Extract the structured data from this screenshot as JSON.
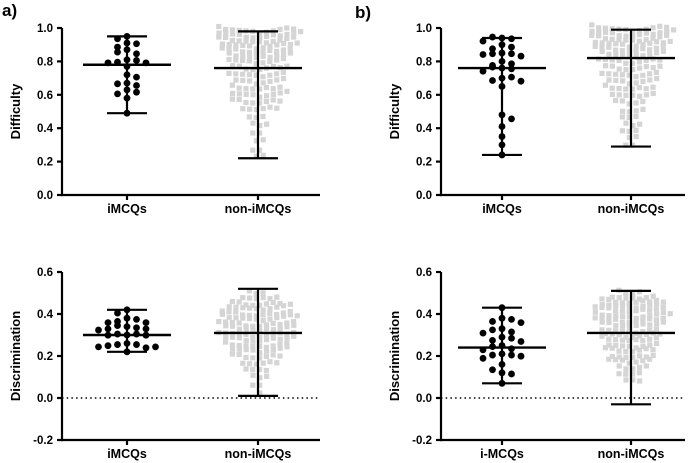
{
  "figure": {
    "panels": [
      {
        "label": "a)"
      },
      {
        "label": "b)"
      }
    ],
    "colors": {
      "black_points": "#000000",
      "gray_points": "#d5d5d5",
      "axis": "#000000",
      "background": "#ffffff"
    }
  },
  "chart_data": [
    {
      "id": "panel-a-difficulty",
      "type": "scatter",
      "panel": "a)",
      "ylabel": "Difficulty",
      "ylim": [
        0.0,
        1.0
      ],
      "yticks": [
        1.0,
        0.8,
        0.6,
        0.4,
        0.2,
        0.0
      ],
      "ytick_labels": [
        "1.0",
        "0.8",
        "0.6",
        "0.4",
        "0.2",
        "0.0"
      ],
      "zero_dotted_line": false,
      "categories": [
        "iMCQs",
        "non-iMCQs"
      ],
      "groups": [
        {
          "category": "iMCQs",
          "marker": "circle",
          "color": "#000000",
          "mean": 0.78,
          "whisker_low": 0.49,
          "whisker_high": 0.95,
          "points": [
            0.95,
            0.93,
            0.91,
            0.9,
            0.88,
            0.87,
            0.85,
            0.84,
            0.81,
            0.8,
            0.79,
            0.78,
            0.78,
            0.77,
            0.72,
            0.7,
            0.67,
            0.66,
            0.65,
            0.63,
            0.61,
            0.6,
            0.58,
            0.49
          ]
        },
        {
          "category": "non-iMCQs",
          "marker": "square",
          "color": "#d5d5d5",
          "mean": 0.76,
          "whisker_low": 0.22,
          "whisker_high": 0.98,
          "rows": [
            [
              0.97,
              12
            ],
            [
              0.94,
              13
            ],
            [
              0.91,
              12
            ],
            [
              0.88,
              12
            ],
            [
              0.85,
              11
            ],
            [
              0.82,
              10
            ],
            [
              0.79,
              9
            ],
            [
              0.75,
              9
            ],
            [
              0.71,
              9
            ],
            [
              0.67,
              8
            ],
            [
              0.63,
              8
            ],
            [
              0.59,
              9
            ],
            [
              0.55,
              8
            ],
            [
              0.51,
              6
            ],
            [
              0.46,
              3
            ],
            [
              0.42,
              3
            ],
            [
              0.37,
              2
            ],
            [
              0.32,
              2
            ],
            [
              0.27,
              2
            ],
            [
              0.23,
              2
            ]
          ]
        }
      ]
    },
    {
      "id": "panel-b-difficulty",
      "type": "scatter",
      "panel": "b)",
      "ylabel": "Difficulty",
      "ylim": [
        0.0,
        1.0
      ],
      "yticks": [
        1.0,
        0.8,
        0.6,
        0.4,
        0.2,
        0.0
      ],
      "ytick_labels": [
        "1.0",
        "0.8",
        "0.6",
        "0.4",
        "0.2",
        "0.0"
      ],
      "zero_dotted_line": false,
      "categories": [
        "iMCQs",
        "non-iMCQs"
      ],
      "groups": [
        {
          "category": "iMCQs",
          "marker": "circle",
          "color": "#000000",
          "mean": 0.76,
          "whisker_low": 0.24,
          "whisker_high": 0.94,
          "points": [
            0.94,
            0.94,
            0.93,
            0.91,
            0.9,
            0.88,
            0.87,
            0.85,
            0.84,
            0.84,
            0.83,
            0.82,
            0.8,
            0.78,
            0.77,
            0.76,
            0.76,
            0.75,
            0.73,
            0.7,
            0.7,
            0.68,
            0.67,
            0.65,
            0.48,
            0.45,
            0.41,
            0.35,
            0.3,
            0.24
          ]
        },
        {
          "category": "non-iMCQs",
          "marker": "square",
          "color": "#d5d5d5",
          "mean": 0.82,
          "whisker_low": 0.29,
          "whisker_high": 0.99,
          "rows": [
            [
              0.98,
              12
            ],
            [
              0.95,
              13
            ],
            [
              0.92,
              12
            ],
            [
              0.89,
              12
            ],
            [
              0.86,
              11
            ],
            [
              0.83,
              10
            ],
            [
              0.79,
              10
            ],
            [
              0.75,
              9
            ],
            [
              0.71,
              9
            ],
            [
              0.67,
              8
            ],
            [
              0.63,
              8
            ],
            [
              0.59,
              7
            ],
            [
              0.55,
              5
            ],
            [
              0.5,
              4
            ],
            [
              0.46,
              3
            ],
            [
              0.42,
              3
            ],
            [
              0.38,
              3
            ],
            [
              0.34,
              2
            ],
            [
              0.3,
              2
            ]
          ]
        }
      ]
    },
    {
      "id": "panel-a-discrimination",
      "type": "scatter",
      "panel": "a)",
      "ylabel": "Discrimination",
      "ylim": [
        -0.2,
        0.6
      ],
      "yticks": [
        0.6,
        0.4,
        0.2,
        0.0,
        -0.2
      ],
      "ytick_labels": [
        "0.6",
        "0.4",
        "0.2",
        "0.0",
        "-0.2"
      ],
      "zero_dotted_line": true,
      "categories": [
        "iMCQs",
        "non-iMCQs"
      ],
      "groups": [
        {
          "category": "iMCQs",
          "marker": "circle",
          "color": "#000000",
          "mean": 0.3,
          "whisker_low": 0.22,
          "whisker_high": 0.42,
          "points": [
            0.42,
            0.4,
            0.38,
            0.37,
            0.36,
            0.35,
            0.35,
            0.34,
            0.34,
            0.33,
            0.32,
            0.32,
            0.31,
            0.3,
            0.3,
            0.3,
            0.29,
            0.29,
            0.26,
            0.25,
            0.25,
            0.24,
            0.23,
            0.23,
            0.23,
            0.22
          ]
        },
        {
          "category": "non-iMCQs",
          "marker": "square",
          "color": "#d5d5d5",
          "mean": 0.31,
          "whisker_low": 0.01,
          "whisker_high": 0.52,
          "rows": [
            [
              0.5,
              3
            ],
            [
              0.47,
              6
            ],
            [
              0.44,
              8
            ],
            [
              0.42,
              10
            ],
            [
              0.39,
              11
            ],
            [
              0.37,
              12
            ],
            [
              0.34,
              12
            ],
            [
              0.32,
              11
            ],
            [
              0.29,
              12
            ],
            [
              0.27,
              11
            ],
            [
              0.24,
              10
            ],
            [
              0.22,
              9
            ],
            [
              0.19,
              8
            ],
            [
              0.16,
              6
            ],
            [
              0.13,
              4
            ],
            [
              0.1,
              3
            ],
            [
              0.06,
              2
            ],
            [
              0.02,
              1
            ]
          ]
        }
      ]
    },
    {
      "id": "panel-b-discrimination",
      "type": "scatter",
      "panel": "b)",
      "ylabel": "Discrimination",
      "ylim": [
        -0.2,
        0.6
      ],
      "yticks": [
        0.6,
        0.4,
        0.2,
        0.0,
        -0.2
      ],
      "ytick_labels": [
        "0.6",
        "0.4",
        "0.2",
        "0.0",
        "-0.2"
      ],
      "zero_dotted_line": true,
      "categories": [
        "i-MCQs",
        "non-iMCQs"
      ],
      "groups": [
        {
          "category": "i-MCQs",
          "marker": "circle",
          "color": "#000000",
          "mean": 0.24,
          "whisker_low": 0.07,
          "whisker_high": 0.43,
          "points": [
            0.43,
            0.38,
            0.37,
            0.36,
            0.35,
            0.33,
            0.32,
            0.31,
            0.3,
            0.29,
            0.28,
            0.27,
            0.26,
            0.25,
            0.24,
            0.23,
            0.22,
            0.21,
            0.2,
            0.2,
            0.19,
            0.18,
            0.16,
            0.13,
            0.12,
            0.11,
            0.07
          ]
        },
        {
          "category": "non-iMCQs",
          "marker": "square",
          "color": "#d5d5d5",
          "mean": 0.31,
          "whisker_low": -0.03,
          "whisker_high": 0.51,
          "rows": [
            [
              0.5,
              4
            ],
            [
              0.47,
              7
            ],
            [
              0.45,
              9
            ],
            [
              0.43,
              10
            ],
            [
              0.41,
              11
            ],
            [
              0.38,
              12
            ],
            [
              0.36,
              11
            ],
            [
              0.34,
              10
            ],
            [
              0.31,
              9
            ],
            [
              0.29,
              9
            ],
            [
              0.27,
              9
            ],
            [
              0.24,
              8
            ],
            [
              0.22,
              8
            ],
            [
              0.19,
              7
            ],
            [
              0.17,
              7
            ],
            [
              0.14,
              5
            ],
            [
              0.11,
              4
            ],
            [
              0.08,
              3
            ]
          ]
        }
      ]
    }
  ]
}
